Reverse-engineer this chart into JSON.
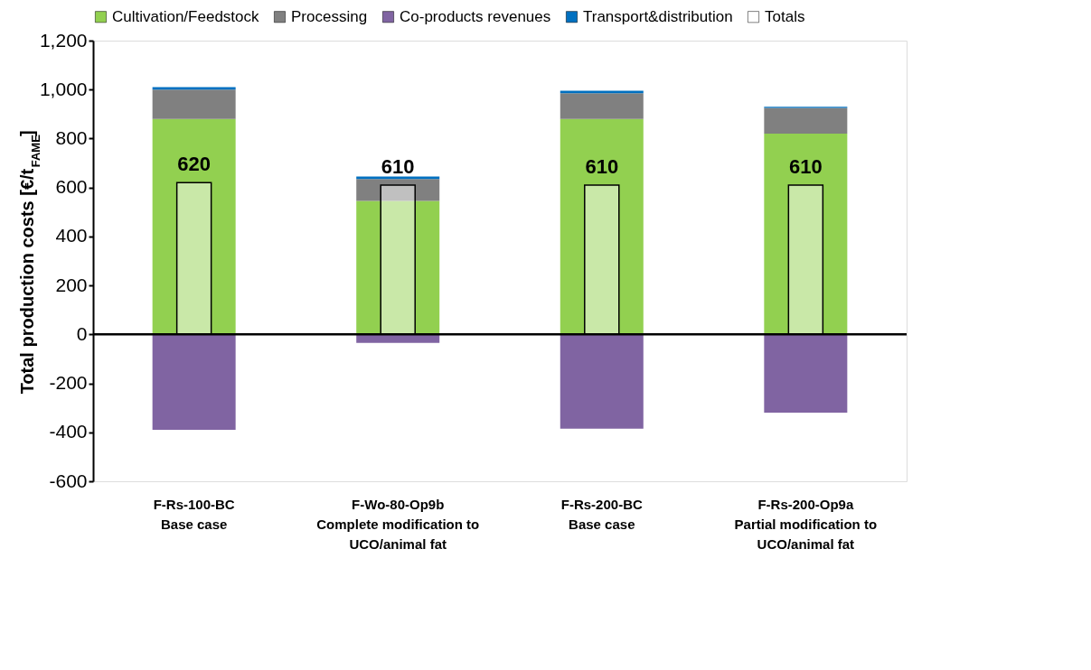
{
  "chart_data": {
    "type": "bar",
    "categories": [
      "F-Rs-100-BC\nBase case",
      "F-Wo-80-Op9b\nComplete modification to\nUCO/animal fat",
      "F-Rs-200-BC\nBase case",
      "F-Rs-200-Op9a\nPartial modification to\nUCO/animal fat"
    ],
    "ylabel": "Total production costs [€/t$_{FAME}$]",
    "ylim": [
      -600,
      1200
    ],
    "yticks": [
      {
        "value": -600,
        "label": "-600"
      },
      {
        "value": -400,
        "label": "-400"
      },
      {
        "value": -200,
        "label": "-200"
      },
      0,
      200,
      400,
      600,
      800,
      {
        "value": 1000,
        "label": "1,000"
      },
      {
        "value": 1200,
        "label": "1,200"
      }
    ],
    "series": [
      {
        "name": "Cultivation/Feedstock",
        "color": "#92d050",
        "values": [
          880,
          545,
          880,
          820
        ],
        "base": [
          0,
          0,
          0,
          0
        ]
      },
      {
        "name": "Processing",
        "color": "#808080",
        "values": [
          120,
          90,
          105,
          105
        ],
        "base": [
          880,
          545,
          880,
          820
        ]
      },
      {
        "name": "Co-products revenues",
        "color": "#8064a2",
        "values": [
          -390,
          -35,
          -385,
          -320
        ],
        "base": [
          0,
          0,
          0,
          0
        ]
      },
      {
        "name": "Transport&distribution",
        "color": "#0070c0",
        "values": [
          10,
          10,
          10,
          5
        ],
        "base": [
          1000,
          635,
          985,
          925
        ]
      },
      {
        "name": "Totals",
        "type": "bar",
        "color": "#ffffff",
        "base": [
          0,
          0,
          0,
          0
        ],
        "values": [
          620,
          610,
          610,
          610
        ],
        "value_labels": [
          "620",
          "610",
          "610",
          "610"
        ]
      }
    ],
    "ref_lines": [
      {
        "axis": "y",
        "value": 0,
        "color": "#000000"
      }
    ],
    "legend": "top",
    "grid": false
  }
}
